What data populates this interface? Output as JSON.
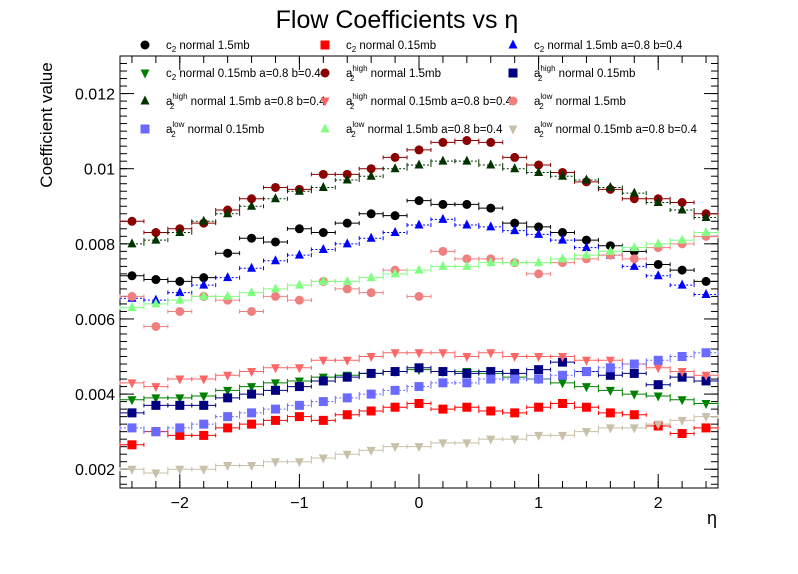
{
  "chart_data": {
    "type": "scatter",
    "title": "Flow Coefficients vs η",
    "xlabel": "η",
    "ylabel": "Coefficient value",
    "xlim": [
      -2.5,
      2.5
    ],
    "ylim": [
      0.0015,
      0.013
    ],
    "x_ticks": [
      -2,
      -1,
      0,
      1,
      2
    ],
    "y_ticks": [
      0.002,
      0.004,
      0.006,
      0.008,
      0.01,
      0.012
    ],
    "x_tick_labels": [
      "−2",
      "−1",
      "0",
      "1",
      "2"
    ],
    "y_tick_labels": [
      "0.002",
      "0.004",
      "0.006",
      "0.008",
      "0.01",
      "0.012"
    ],
    "x_bin_half_width": 0.1,
    "legend_position": "top",
    "x": [
      -2.4,
      -2.2,
      -2.0,
      -1.8,
      -1.6,
      -1.4,
      -1.2,
      -1.0,
      -0.8,
      -0.6,
      -0.4,
      -0.2,
      0.0,
      0.2,
      0.4,
      0.6,
      0.8,
      1.0,
      1.2,
      1.4,
      1.6,
      1.8,
      2.0,
      2.2,
      2.4
    ],
    "series": [
      {
        "name": "c2 normal 1.5mb",
        "base": "c",
        "sub": "2",
        "sup": "",
        "rest": " normal 1.5mb",
        "marker": "circle",
        "color": "#000000",
        "dashed": false,
        "values": [
          0.00715,
          0.00705,
          0.007,
          0.0071,
          0.00775,
          0.00815,
          0.00805,
          0.0084,
          0.0083,
          0.00855,
          0.0088,
          0.00875,
          0.00915,
          0.00905,
          0.00905,
          0.00895,
          0.00855,
          0.00845,
          0.0083,
          0.0081,
          0.00795,
          0.0078,
          0.00745,
          0.0073,
          0.007
        ]
      },
      {
        "name": "c2 normal 0.15mb",
        "base": "c",
        "sub": "2",
        "sup": "",
        "rest": " normal 0.15mb",
        "marker": "square",
        "color": "#ff0000",
        "dashed": false,
        "values": [
          0.00265,
          0.003,
          0.0029,
          0.0029,
          0.0031,
          0.0032,
          0.0033,
          0.0034,
          0.0033,
          0.00345,
          0.00355,
          0.00365,
          0.00375,
          0.0036,
          0.00365,
          0.00355,
          0.0035,
          0.00365,
          0.00375,
          0.00365,
          0.0035,
          0.00345,
          0.00315,
          0.00295,
          0.0031
        ]
      },
      {
        "name": "c2 normal 1.5mb a=0.8 b=0.4",
        "base": "c",
        "sub": "2",
        "sup": "",
        "rest": " normal 1.5mb a=0.8 b=0.4",
        "marker": "triangle",
        "color": "#0000ff",
        "dashed": true,
        "values": [
          0.00655,
          0.0065,
          0.0067,
          0.0069,
          0.0071,
          0.00735,
          0.00755,
          0.0077,
          0.00785,
          0.008,
          0.00815,
          0.0083,
          0.0085,
          0.00865,
          0.0085,
          0.00845,
          0.00835,
          0.00825,
          0.0081,
          0.0079,
          0.0077,
          0.0074,
          0.00715,
          0.0069,
          0.00665
        ]
      },
      {
        "name": "c2 normal 0.15mb a=0.8 b=0.4",
        "base": "c",
        "sub": "2",
        "sup": "",
        "rest": " normal 0.15mb a=0.8 b=0.4",
        "marker": "invtriangle",
        "color": "#008000",
        "dashed": false,
        "values": [
          0.00385,
          0.0039,
          0.0039,
          0.00395,
          0.0041,
          0.0042,
          0.0043,
          0.00435,
          0.00445,
          0.0045,
          0.00455,
          0.0046,
          0.00465,
          0.0046,
          0.0046,
          0.00455,
          0.00445,
          0.0044,
          0.0043,
          0.0042,
          0.0041,
          0.004,
          0.00395,
          0.00385,
          0.00375
        ]
      },
      {
        "name": "a2high normal 1.5mb",
        "base": "a",
        "sub": "2",
        "sup": "high",
        "rest": " normal 1.5mb",
        "marker": "circle",
        "color": "#8b0000",
        "dashed": false,
        "values": [
          0.0086,
          0.0083,
          0.0084,
          0.00855,
          0.0089,
          0.0092,
          0.0095,
          0.00945,
          0.00985,
          0.00985,
          0.01,
          0.0103,
          0.0105,
          0.0107,
          0.01075,
          0.0107,
          0.0103,
          0.0101,
          0.0099,
          0.00965,
          0.00945,
          0.0092,
          0.0092,
          0.0091,
          0.0088
        ]
      },
      {
        "name": "a2high normal 0.15mb",
        "base": "a",
        "sub": "2",
        "sup": "high",
        "rest": " normal 0.15mb",
        "marker": "square",
        "color": "#000080",
        "dashed": false,
        "values": [
          0.0035,
          0.0037,
          0.0037,
          0.0037,
          0.0039,
          0.004,
          0.0041,
          0.0042,
          0.00435,
          0.00445,
          0.00455,
          0.0046,
          0.0047,
          0.0046,
          0.00455,
          0.0046,
          0.00455,
          0.00465,
          0.00485,
          0.0046,
          0.0045,
          0.00455,
          0.00425,
          0.00445,
          0.00435
        ]
      },
      {
        "name": "a2high normal 1.5mb a=0.8 b=0.4",
        "base": "a",
        "sub": "2",
        "sup": "high",
        "rest": " normal 1.5mb a=0.8 b=0.4",
        "marker": "triangle",
        "color": "#003300",
        "dashed": true,
        "values": [
          0.008,
          0.0081,
          0.0083,
          0.0086,
          0.0088,
          0.009,
          0.0092,
          0.0094,
          0.0095,
          0.0097,
          0.0098,
          0.01,
          0.0101,
          0.0102,
          0.0102,
          0.0101,
          0.01,
          0.0099,
          0.0098,
          0.0097,
          0.0095,
          0.00935,
          0.0091,
          0.0089,
          0.0087
        ]
      },
      {
        "name": "a2high normal 0.15mb a=0.8 b=0.4",
        "base": "a",
        "sub": "2",
        "sup": "high",
        "rest": " normal 0.15mb a=0.8 b=0.4",
        "marker": "invtriangle",
        "color": "#ff6666",
        "dashed": false,
        "values": [
          0.0043,
          0.0042,
          0.0044,
          0.0044,
          0.0045,
          0.0046,
          0.0047,
          0.0047,
          0.0049,
          0.0049,
          0.005,
          0.0051,
          0.0051,
          0.0051,
          0.005,
          0.0051,
          0.005,
          0.005,
          0.005,
          0.0049,
          0.0049,
          0.0048,
          0.0047,
          0.0046,
          0.0045
        ]
      },
      {
        "name": "a2low normal 1.5mb",
        "base": "a",
        "sub": "2",
        "sup": "low",
        "rest": " normal 1.5mb",
        "marker": "circle",
        "color": "#f08080",
        "dashed": false,
        "values": [
          0.0066,
          0.0058,
          0.0062,
          0.0066,
          0.0065,
          0.0062,
          0.0066,
          0.0065,
          0.007,
          0.0068,
          0.0067,
          0.0073,
          0.0066,
          0.0078,
          0.0076,
          0.0076,
          0.0075,
          0.0072,
          0.0075,
          0.0076,
          0.0077,
          0.0076,
          0.0079,
          0.008,
          0.0082
        ]
      },
      {
        "name": "a2low normal 0.15mb",
        "base": "a",
        "sub": "2",
        "sup": "low",
        "rest": " normal 0.15mb",
        "marker": "square",
        "color": "#6a6aff",
        "dashed": true,
        "values": [
          0.0031,
          0.003,
          0.0031,
          0.0032,
          0.0034,
          0.0035,
          0.0036,
          0.0037,
          0.0038,
          0.0039,
          0.004,
          0.0041,
          0.0042,
          0.0043,
          0.0043,
          0.0044,
          0.0044,
          0.0044,
          0.0045,
          0.0046,
          0.0047,
          0.0048,
          0.0049,
          0.005,
          0.0051
        ]
      },
      {
        "name": "a2low normal 1.5mb a=0.8 b=0.4",
        "base": "a",
        "sub": "2",
        "sup": "low",
        "rest": " normal 1.5mb a=0.8 b=0.4",
        "marker": "triangle",
        "color": "#80ff80",
        "dashed": false,
        "values": [
          0.0063,
          0.0064,
          0.0065,
          0.0066,
          0.0066,
          0.0067,
          0.0068,
          0.0069,
          0.007,
          0.007,
          0.0071,
          0.0072,
          0.0073,
          0.0074,
          0.0074,
          0.0075,
          0.0075,
          0.0075,
          0.0076,
          0.0077,
          0.0078,
          0.0079,
          0.008,
          0.0081,
          0.0083
        ]
      },
      {
        "name": "a2low normal 0.15mb a=0.8 b=0.4",
        "base": "a",
        "sub": "2",
        "sup": "low",
        "rest": " normal 0.15mb a=0.8 b=0.4",
        "marker": "invtriangle",
        "color": "#c8c0a8",
        "dashed": false,
        "values": [
          0.002,
          0.0019,
          0.002,
          0.002,
          0.0021,
          0.0021,
          0.0022,
          0.0022,
          0.0023,
          0.0024,
          0.0025,
          0.0026,
          0.0026,
          0.0027,
          0.0027,
          0.0028,
          0.0028,
          0.0029,
          0.0029,
          0.003,
          0.0031,
          0.0031,
          0.0032,
          0.0033,
          0.0034
        ]
      }
    ]
  }
}
